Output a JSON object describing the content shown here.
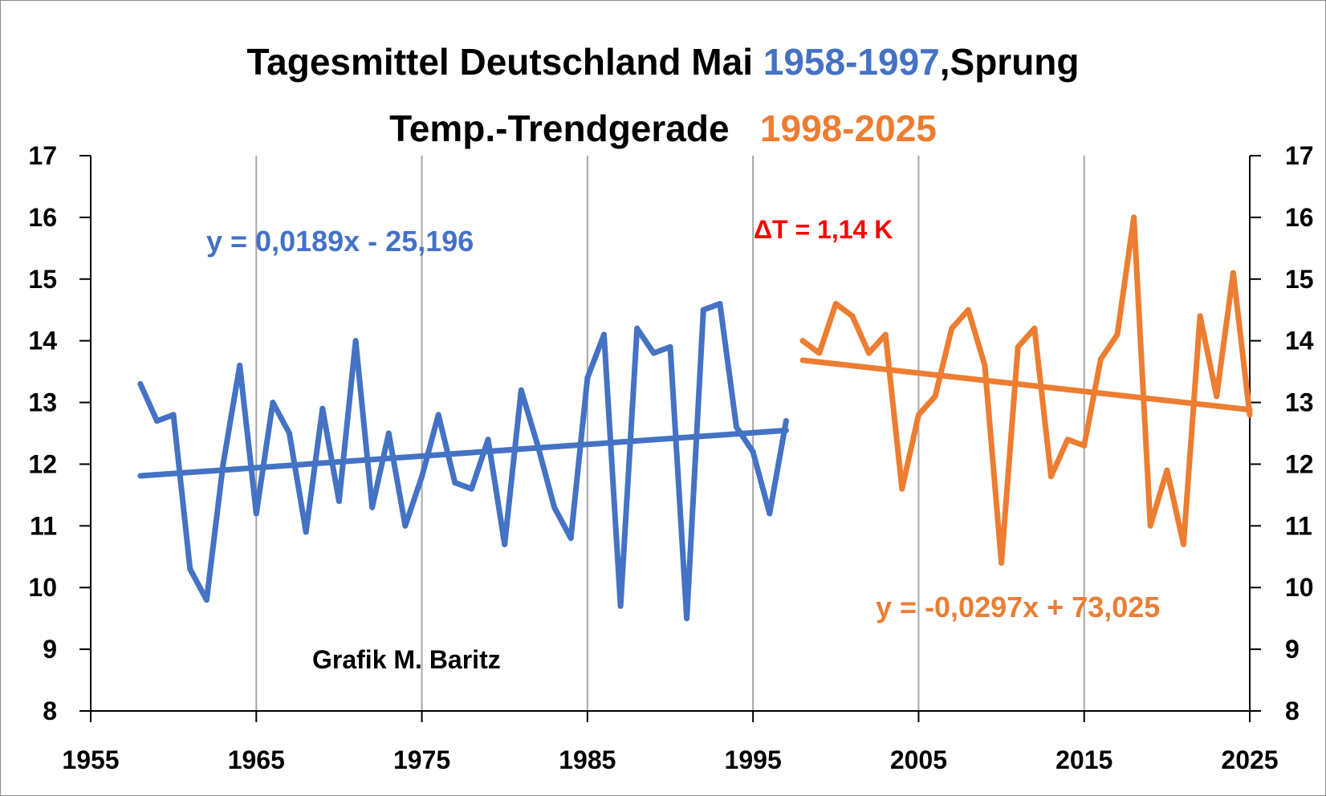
{
  "chart_data": {
    "type": "line",
    "title": {
      "part1": "Tagesmittel Deutschland Mai ",
      "period1": "1958-1997",
      "part2": ",Sprung",
      "line2": "Temp.-Trendgerade",
      "period2": "1998-2025"
    },
    "xlim": [
      1955,
      2025
    ],
    "ylim": [
      8,
      17
    ],
    "x_ticks": [
      1955,
      1965,
      1975,
      1985,
      1995,
      2005,
      2015,
      2025
    ],
    "y_ticks": [
      8,
      9,
      10,
      11,
      12,
      13,
      14,
      15,
      16,
      17
    ],
    "grid": "vertical",
    "series": [
      {
        "color": "#4472C4",
        "x_start": 1958,
        "values": [
          13.3,
          12.7,
          12.8,
          10.3,
          9.8,
          12.0,
          13.6,
          11.2,
          13.0,
          12.5,
          10.9,
          12.9,
          11.4,
          14.0,
          11.3,
          12.5,
          11.0,
          11.8,
          12.8,
          11.7,
          11.6,
          12.4,
          10.7,
          13.2,
          12.3,
          11.3,
          10.8,
          13.4,
          14.1,
          9.7,
          14.2,
          13.8,
          13.9,
          9.5,
          14.5,
          14.6,
          12.6,
          12.2,
          11.2,
          12.7
        ]
      },
      {
        "color": "#ED7D31",
        "x_start": 1998,
        "values": [
          14.0,
          13.8,
          14.6,
          14.4,
          13.8,
          14.1,
          11.6,
          12.8,
          13.1,
          14.2,
          14.5,
          13.6,
          10.4,
          13.9,
          14.2,
          11.8,
          12.4,
          12.3,
          13.7,
          14.1,
          16.0,
          11.0,
          11.9,
          10.7,
          14.4,
          13.1,
          15.1,
          12.8
        ]
      }
    ],
    "trendlines": [
      {
        "color": "#4472C4",
        "slope": 0.0189,
        "intercept": -25.196,
        "x_from": 1958,
        "x_to": 1997,
        "label": "y = 0,0189x - 25,196"
      },
      {
        "color": "#ED7D31",
        "slope": -0.0297,
        "intercept": 73.025,
        "x_from": 1998,
        "x_to": 2025,
        "label": "y = -0,0297x + 73,025"
      }
    ],
    "annotations": {
      "delta": "ΔT = 1,14 K",
      "delta_color": "#FF0000",
      "credit": "Grafik M. Baritz"
    }
  }
}
